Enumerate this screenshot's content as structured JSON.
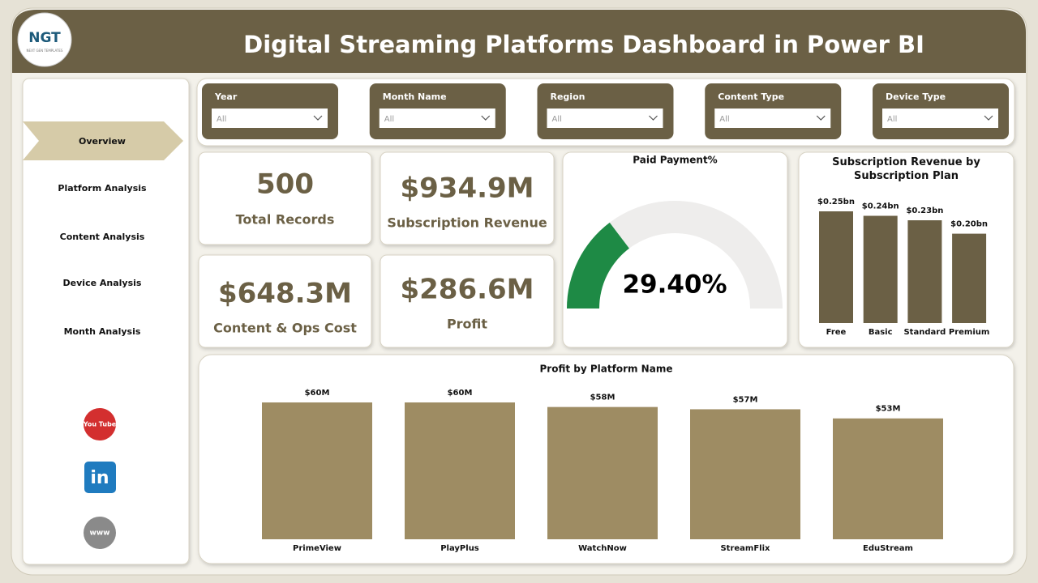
{
  "header": {
    "title": "Digital Streaming Platforms Dashboard in Power BI",
    "logo": "NGT",
    "logo_sub": "NEXT GEN TEMPLATES"
  },
  "nav": [
    "Overview",
    "Platform Analysis",
    "Content Analysis",
    "Device Analysis",
    "Month Analysis"
  ],
  "social": [
    "You Tube",
    "in",
    "www"
  ],
  "slicers": [
    {
      "label": "Year",
      "value": "All"
    },
    {
      "label": "Month Name",
      "value": "All"
    },
    {
      "label": "Region",
      "value": "All"
    },
    {
      "label": "Content Type",
      "value": "All"
    },
    {
      "label": "Device Type",
      "value": "All"
    }
  ],
  "kpis": [
    {
      "value": "500",
      "label": "Total Records"
    },
    {
      "value": "$934.9M",
      "label": "Subscription Revenue"
    },
    {
      "value": "$648.3M",
      "label": "Content & Ops Cost"
    },
    {
      "value": "$286.6M",
      "label": "Profit"
    }
  ],
  "chart_data": [
    {
      "type": "gauge",
      "title": "Paid Payment%",
      "value": 29.4,
      "value_label": "29.40%",
      "color": "#1e8a45"
    },
    {
      "type": "bar",
      "title": "Subscription Revenue by Subscription Plan",
      "categories": [
        "Free",
        "Basic",
        "Standard",
        "Premium"
      ],
      "values": [
        0.25,
        0.24,
        0.23,
        0.2
      ],
      "value_labels": [
        "$0.25bn",
        "$0.24bn",
        "$0.23bn",
        "$0.20bn"
      ],
      "color": "#6b6045"
    },
    {
      "type": "bar",
      "title": "Profit by Platform Name",
      "categories": [
        "PrimeView",
        "PlayPlus",
        "WatchNow",
        "StreamFlix",
        "EduStream"
      ],
      "values": [
        60,
        60,
        58,
        57,
        53
      ],
      "value_labels": [
        "$60M",
        "$60M",
        "$58M",
        "$57M",
        "$53M"
      ],
      "color": "#9e8c63"
    }
  ]
}
